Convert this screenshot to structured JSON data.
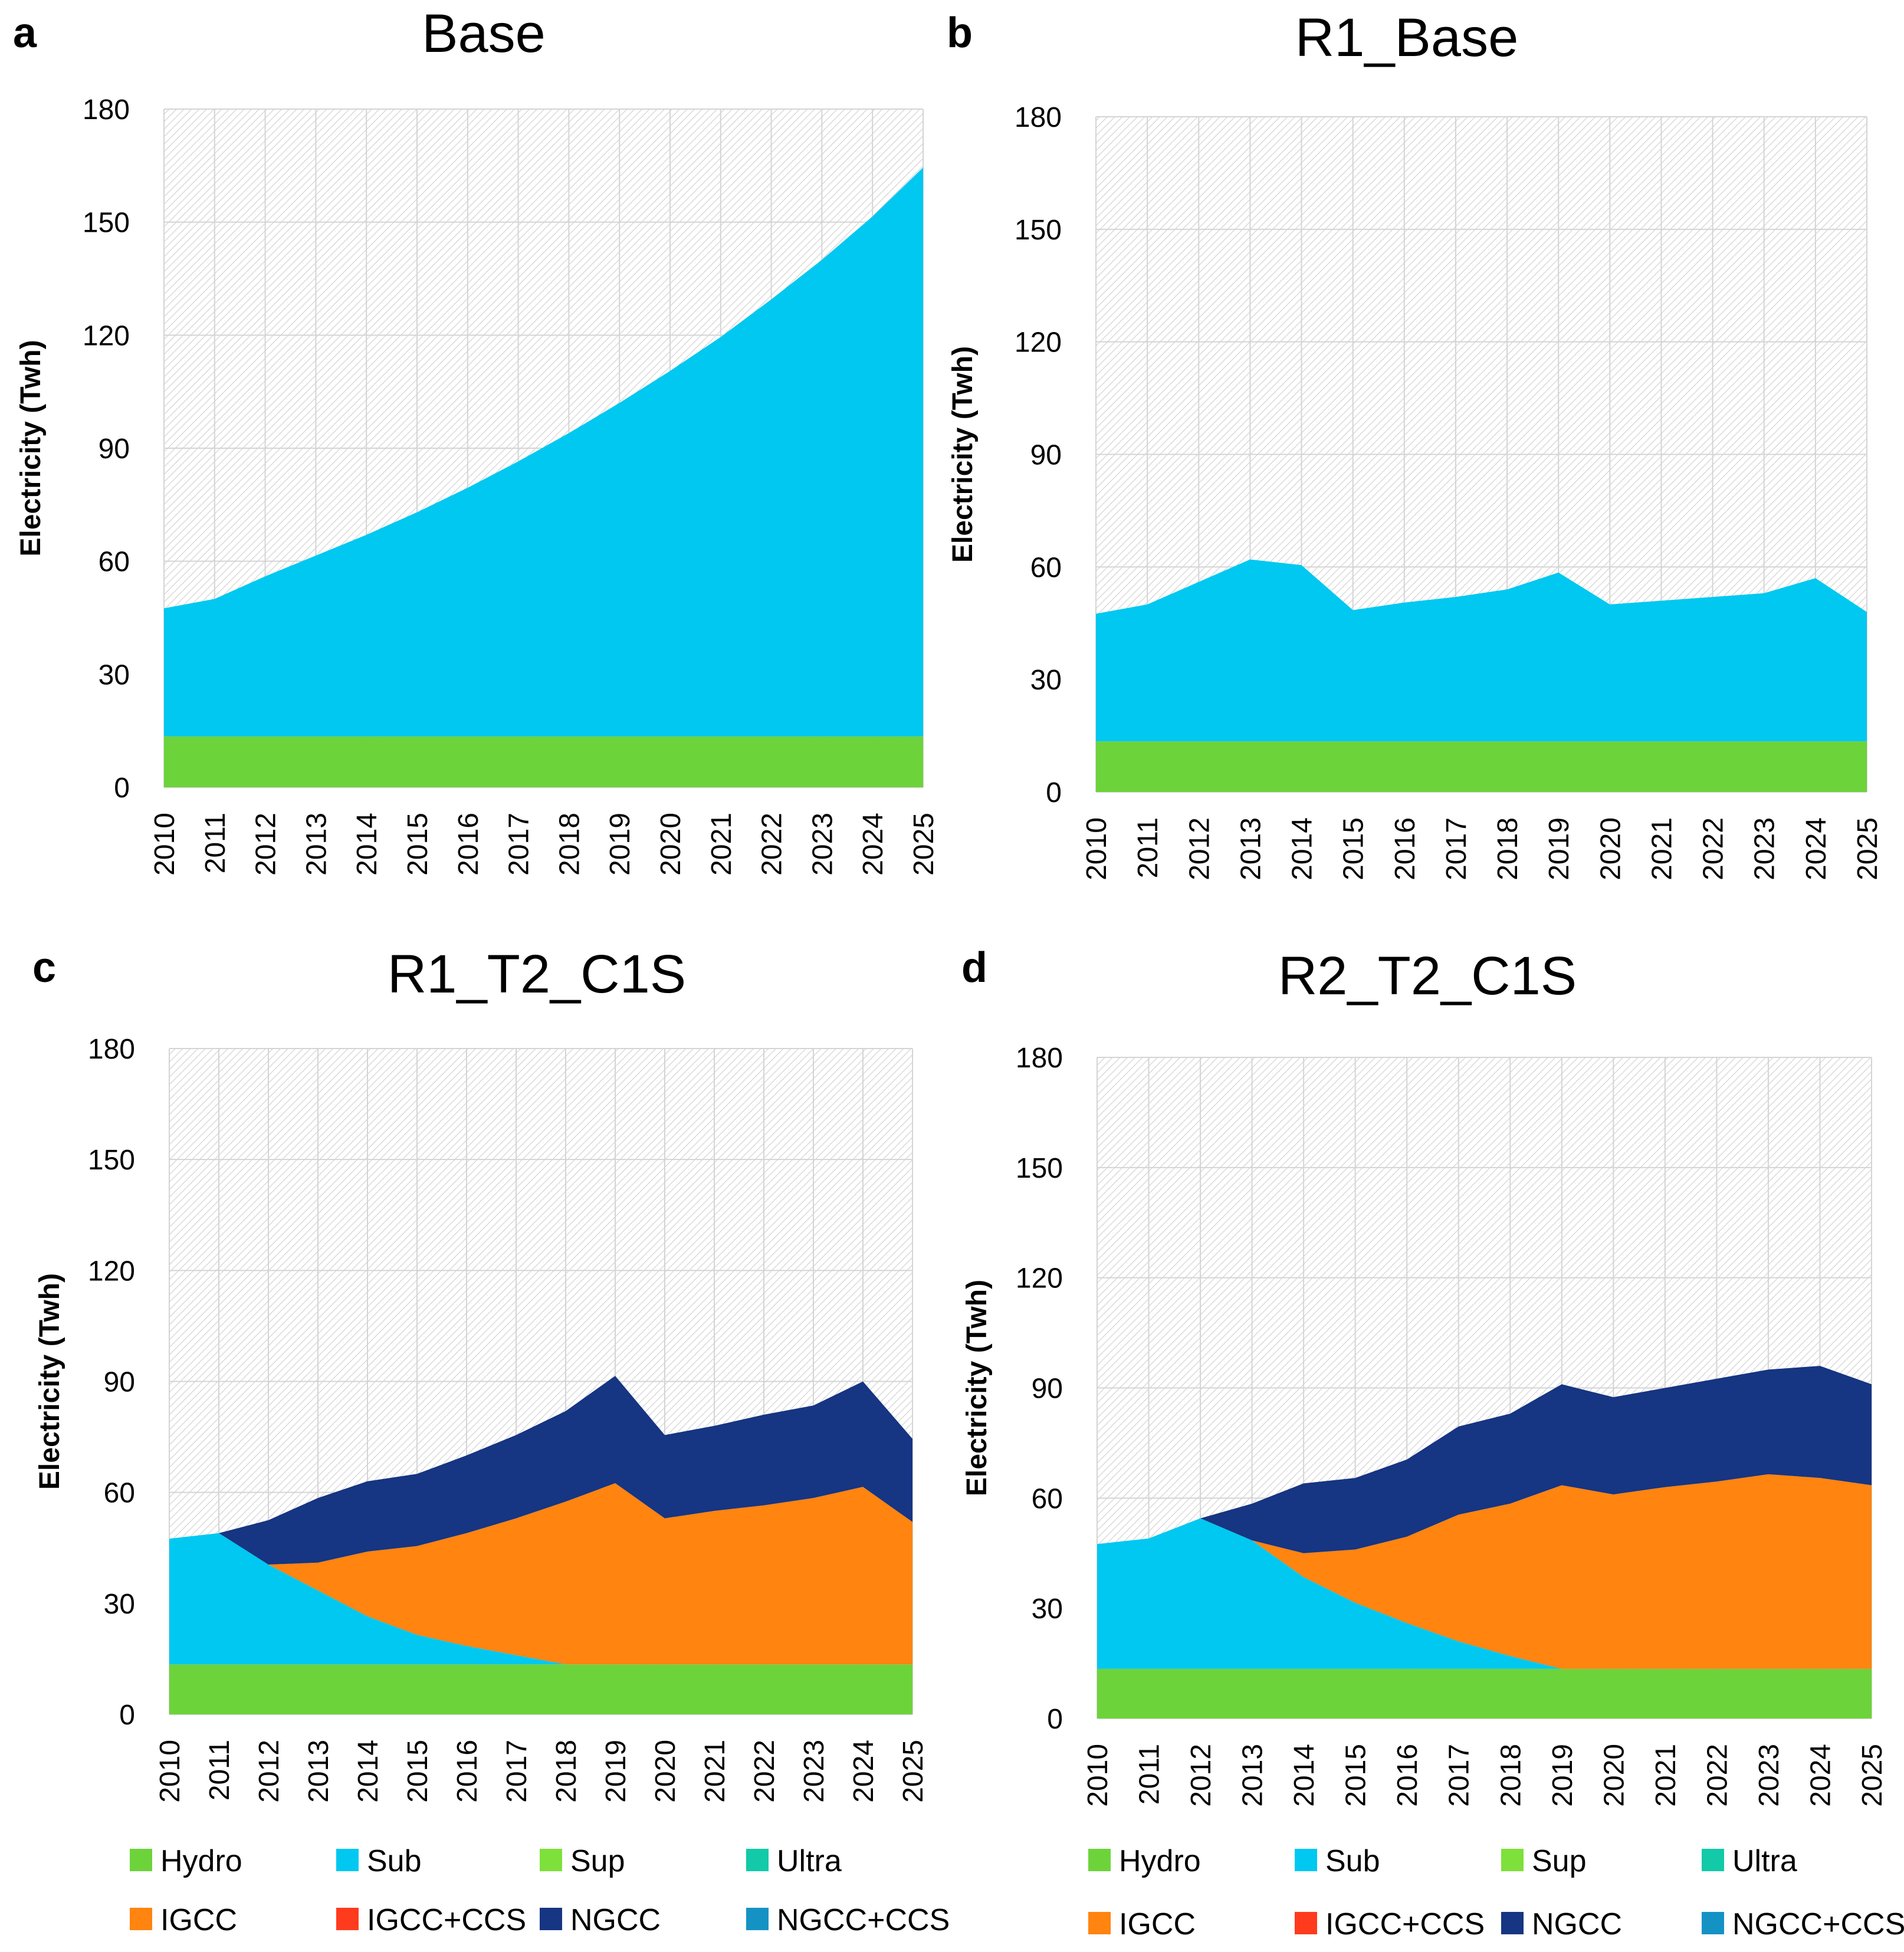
{
  "legend_colors": {
    "Hydro": "#6dd33b",
    "Sub": "#00c8f0",
    "Sup": "#7ee03a",
    "Ultra": "#12c9a8",
    "IGCC": "#ff8410",
    "IGCC+CCS": "#ff3b1e",
    "NGCC": "#163582",
    "NGCC+CCS": "#1592c4"
  },
  "chart_data": [
    {
      "panel": "a",
      "title": "Base",
      "type": "area",
      "stacked": true,
      "xlabel": "",
      "ylabel": "Electricity (Twh)",
      "ylim": [
        0,
        180
      ],
      "yticks": [
        0,
        30,
        60,
        90,
        120,
        150,
        180
      ],
      "grid": true,
      "x": [
        "2010",
        "2011",
        "2012",
        "2013",
        "2014",
        "2015",
        "2016",
        "2017",
        "2018",
        "2019",
        "2020",
        "2021",
        "2022",
        "2023",
        "2024",
        "2025"
      ],
      "series": [
        {
          "name": "Hydro",
          "values": [
            13.5,
            13.5,
            13.5,
            13.5,
            13.5,
            13.5,
            13.5,
            13.5,
            13.5,
            13.5,
            13.5,
            13.5,
            13.5,
            13.5,
            13.5,
            13.5
          ]
        },
        {
          "name": "Sub",
          "values": [
            34,
            36.5,
            42.5,
            48,
            53.5,
            59.5,
            66,
            73,
            80.5,
            88.5,
            97,
            106,
            116,
            126.5,
            138,
            151
          ]
        }
      ]
    },
    {
      "panel": "b",
      "title": "R1_Base",
      "type": "area",
      "stacked": true,
      "xlabel": "",
      "ylabel": "Electricity (Twh)",
      "ylim": [
        0,
        180
      ],
      "yticks": [
        0,
        30,
        60,
        90,
        120,
        150,
        180
      ],
      "grid": true,
      "x": [
        "2010",
        "2011",
        "2012",
        "2013",
        "2014",
        "2015",
        "2016",
        "2017",
        "2018",
        "2019",
        "2020",
        "2021",
        "2022",
        "2023",
        "2024",
        "2025"
      ],
      "series": [
        {
          "name": "Hydro",
          "values": [
            13.5,
            13.5,
            13.5,
            13.5,
            13.5,
            13.5,
            13.5,
            13.5,
            13.5,
            13.5,
            13.5,
            13.5,
            13.5,
            13.5,
            13.5,
            13.5
          ]
        },
        {
          "name": "Sub",
          "values": [
            34,
            36.5,
            42.5,
            48.5,
            47,
            35,
            37,
            38.5,
            40.5,
            45,
            36.5,
            37.5,
            38.5,
            39.5,
            43.5,
            34.5
          ]
        }
      ]
    },
    {
      "panel": "c",
      "title": "R1_T2_C1S",
      "type": "area",
      "stacked": true,
      "xlabel": "",
      "ylabel": "Electricity (Twh)",
      "ylim": [
        0,
        180
      ],
      "yticks": [
        0,
        30,
        60,
        90,
        120,
        150,
        180
      ],
      "grid": true,
      "x": [
        "2010",
        "2011",
        "2012",
        "2013",
        "2014",
        "2015",
        "2016",
        "2017",
        "2018",
        "2019",
        "2020",
        "2021",
        "2022",
        "2023",
        "2024",
        "2025"
      ],
      "series": [
        {
          "name": "Hydro",
          "values": [
            13.5,
            13.5,
            13.5,
            13.5,
            13.5,
            13.5,
            13.5,
            13.5,
            13.5,
            13.5,
            13.5,
            13.5,
            13.5,
            13.5,
            13.5,
            13.5
          ]
        },
        {
          "name": "Sub",
          "values": [
            34,
            35.5,
            27,
            20,
            13,
            8,
            5,
            2.5,
            0,
            0,
            0,
            0,
            0,
            0,
            0,
            0
          ]
        },
        {
          "name": "IGCC",
          "values": [
            0,
            0,
            0,
            7.5,
            17.5,
            24,
            30.5,
            37,
            44,
            49,
            39.5,
            41.5,
            43,
            45,
            48,
            38.5
          ]
        },
        {
          "name": "NGCC",
          "values": [
            0,
            0,
            12,
            17.5,
            19,
            19.5,
            21,
            22.5,
            24.5,
            29,
            22.5,
            23,
            24.5,
            25,
            28.5,
            22.5
          ]
        }
      ]
    },
    {
      "panel": "d",
      "title": "R2_T2_C1S",
      "type": "area",
      "stacked": true,
      "xlabel": "",
      "ylabel": "Electricity (Twh)",
      "ylim": [
        0,
        180
      ],
      "yticks": [
        0,
        30,
        60,
        90,
        120,
        150,
        180
      ],
      "grid": true,
      "x": [
        "2010",
        "2011",
        "2012",
        "2013",
        "2014",
        "2015",
        "2016",
        "2017",
        "2018",
        "2019",
        "2020",
        "2021",
        "2022",
        "2023",
        "2024",
        "2025"
      ],
      "series": [
        {
          "name": "Hydro",
          "values": [
            13.5,
            13.5,
            13.5,
            13.5,
            13.5,
            13.5,
            13.5,
            13.5,
            13.5,
            13.5,
            13.5,
            13.5,
            13.5,
            13.5,
            13.5,
            13.5
          ]
        },
        {
          "name": "Sub",
          "values": [
            34,
            35.5,
            41,
            35,
            25,
            18,
            12.5,
            7.5,
            3.5,
            0,
            0,
            0,
            0,
            0,
            0,
            0
          ]
        },
        {
          "name": "IGCC",
          "values": [
            0,
            0,
            0,
            0,
            6.5,
            14.5,
            23.5,
            34.5,
            41.5,
            50,
            47.5,
            49.5,
            51,
            53,
            52,
            50
          ]
        },
        {
          "name": "NGCC",
          "values": [
            0,
            0,
            0,
            10,
            19,
            19.5,
            21,
            24,
            24.5,
            27.5,
            26.5,
            27,
            28,
            28.5,
            30.5,
            27.5
          ]
        }
      ]
    }
  ],
  "legend": {
    "row1": [
      "Hydro",
      "Sub",
      "Sup",
      "Ultra"
    ],
    "row2": [
      "IGCC",
      "IGCC+CCS",
      "NGCC",
      "NGCC+CCS"
    ]
  }
}
